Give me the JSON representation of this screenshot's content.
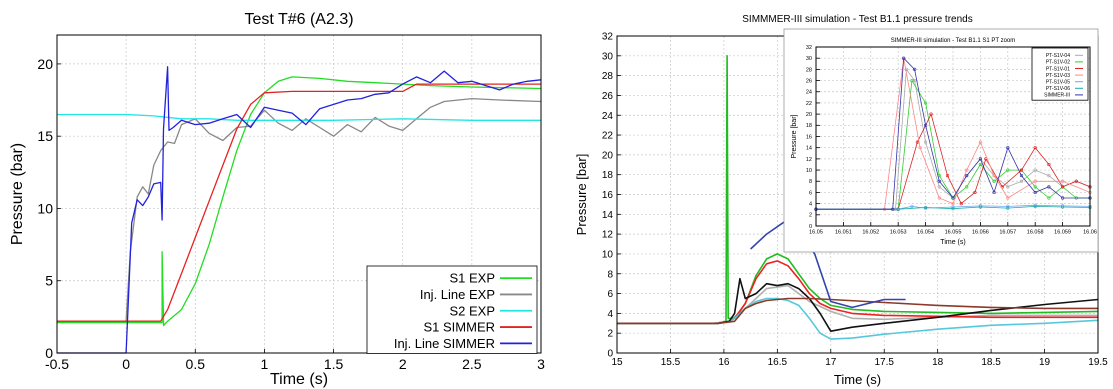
{
  "chart_data": [
    {
      "type": "line",
      "title": "Test T#6 (A2.3)",
      "xlabel": "Time (s)",
      "ylabel": "Pressure (bar)",
      "xlim": [
        -0.5,
        3
      ],
      "ylim": [
        0,
        22
      ],
      "xticks": [
        "-0.5",
        "0",
        "0.5",
        "1",
        "1.5",
        "2",
        "2.5",
        "3"
      ],
      "yticks": [
        "0",
        "5",
        "10",
        "15",
        "20"
      ],
      "grid": true,
      "legend_position": "bottom-right",
      "series": [
        {
          "name": "S1 EXP",
          "color": "#22dd22",
          "x": [
            -0.5,
            0.0,
            0.26,
            0.26,
            0.27,
            0.27,
            0.3,
            0.4,
            0.5,
            0.6,
            0.7,
            0.8,
            0.9,
            1.0,
            1.1,
            1.2,
            1.4,
            1.6,
            1.8,
            2.0,
            2.2,
            2.5,
            3.0
          ],
          "y": [
            2.1,
            2.1,
            2.1,
            7.0,
            2.3,
            1.9,
            2.2,
            3.0,
            4.8,
            7.5,
            10.8,
            14.0,
            16.5,
            18.0,
            18.8,
            19.1,
            19.0,
            18.8,
            18.7,
            18.6,
            18.5,
            18.4,
            18.3
          ]
        },
        {
          "name": "Inj. Line EXP",
          "color": "#888888",
          "x": [
            -0.5,
            0.0,
            0.03,
            0.08,
            0.12,
            0.16,
            0.2,
            0.25,
            0.3,
            0.35,
            0.4,
            0.5,
            0.6,
            0.7,
            0.8,
            0.9,
            1.0,
            1.1,
            1.2,
            1.3,
            1.4,
            1.5,
            1.6,
            1.7,
            1.8,
            1.9,
            2.0,
            2.1,
            2.2,
            2.3,
            2.5,
            2.7,
            3.0
          ],
          "y": [
            2.2,
            2.2,
            7.0,
            10.8,
            11.5,
            11.0,
            13.0,
            14.0,
            14.6,
            14.5,
            15.8,
            16.2,
            15.2,
            14.7,
            15.6,
            15.7,
            16.8,
            15.9,
            15.4,
            16.2,
            15.6,
            15.0,
            15.8,
            15.3,
            16.3,
            15.7,
            15.4,
            16.2,
            17.0,
            17.4,
            17.6,
            17.5,
            17.4
          ]
        },
        {
          "name": "S2 EXP",
          "color": "#22e6e6",
          "x": [
            -0.5,
            0.0,
            0.2,
            0.4,
            0.6,
            0.8,
            1.0,
            1.5,
            2.0,
            2.5,
            3.0
          ],
          "y": [
            16.5,
            16.5,
            16.4,
            16.2,
            16.2,
            16.1,
            16.1,
            16.1,
            16.2,
            16.1,
            16.1
          ]
        },
        {
          "name": "S1 SIMMER",
          "color": "#e52222",
          "x": [
            -0.5,
            0.0,
            0.25,
            0.3,
            0.4,
            0.5,
            0.6,
            0.7,
            0.8,
            0.9,
            1.0,
            1.2,
            1.5,
            1.8,
            2.0,
            2.1,
            2.2,
            2.5,
            3.0
          ],
          "y": [
            2.2,
            2.2,
            2.2,
            3.0,
            5.5,
            8.0,
            10.5,
            13.0,
            15.5,
            17.2,
            18.0,
            18.1,
            18.1,
            18.1,
            18.1,
            18.6,
            18.6,
            18.6,
            18.6
          ]
        },
        {
          "name": "Inj. Line SIMMER",
          "color": "#2222dd",
          "x": [
            -0.5,
            0.0,
            0.04,
            0.08,
            0.12,
            0.16,
            0.2,
            0.25,
            0.26,
            0.27,
            0.3,
            0.31,
            0.34,
            0.4,
            0.5,
            0.6,
            0.7,
            0.8,
            0.9,
            1.0,
            1.1,
            1.2,
            1.3,
            1.4,
            1.5,
            1.6,
            1.7,
            1.8,
            1.9,
            2.0,
            2.1,
            2.2,
            2.3,
            2.4,
            2.5,
            2.7,
            2.8,
            2.9,
            3.0
          ],
          "y": [
            0.0,
            0.0,
            9.0,
            10.6,
            10.2,
            10.8,
            11.7,
            11.8,
            9.2,
            15.5,
            19.8,
            15.4,
            15.6,
            16.1,
            15.8,
            15.9,
            16.2,
            16.5,
            15.6,
            17.0,
            16.8,
            16.6,
            15.8,
            16.9,
            17.2,
            17.5,
            17.6,
            17.9,
            18.0,
            18.6,
            19.1,
            18.7,
            19.5,
            18.7,
            18.8,
            18.2,
            18.6,
            18.8,
            18.9
          ]
        }
      ]
    },
    {
      "type": "line",
      "title": "SIMMMER-III simulation - Test B1.1 pressure trends",
      "xlabel": "Time (s)",
      "ylabel": "Pressure [bar]",
      "xlim": [
        15,
        19.5
      ],
      "ylim": [
        0,
        32
      ],
      "xticks": [
        "15",
        "15.5",
        "16",
        "16.5",
        "17",
        "17.5",
        "18",
        "18.5",
        "19",
        "19.5"
      ],
      "yticks": [
        "0",
        "2",
        "4",
        "6",
        "8",
        "10",
        "12",
        "14",
        "16",
        "18",
        "20",
        "22",
        "24",
        "26",
        "28",
        "30",
        "32"
      ],
      "grid": true,
      "series": [
        {
          "color": "#b0b0b0",
          "x": [
            15,
            15.9,
            16.05,
            16.2,
            16.4,
            16.6,
            16.8,
            17.0,
            17.2,
            17.5,
            18,
            18.5,
            19,
            19.5
          ],
          "y": [
            3.0,
            3.0,
            3.2,
            4.5,
            6.5,
            6.8,
            5.2,
            4.2,
            3.5,
            3.4,
            3.6,
            3.8,
            3.8,
            3.8
          ]
        },
        {
          "color": "#22bb22",
          "x": [
            15,
            15.95,
            16.02,
            16.03,
            16.04,
            16.1,
            16.2,
            16.3,
            16.4,
            16.5,
            16.6,
            16.7,
            16.8,
            16.9,
            17.0,
            17.2,
            17.5,
            18,
            18.5,
            19,
            19.5
          ],
          "y": [
            3.0,
            3.0,
            3.2,
            30.0,
            3.5,
            3.5,
            5.0,
            7.8,
            9.5,
            10.0,
            9.5,
            8.0,
            6.5,
            5.5,
            4.8,
            4.4,
            4.2,
            4.1,
            4.0,
            4.1,
            4.2
          ]
        },
        {
          "color": "#ee2222",
          "x": [
            15,
            15.95,
            16.05,
            16.1,
            16.2,
            16.3,
            16.4,
            16.5,
            16.6,
            16.7,
            16.8,
            16.9,
            17.0,
            17.2,
            17.5,
            18,
            18.5,
            19,
            19.5
          ],
          "y": [
            3.0,
            3.0,
            3.2,
            3.5,
            5.0,
            7.5,
            9.0,
            9.3,
            8.8,
            7.5,
            6.0,
            5.0,
            4.5,
            4.0,
            3.8,
            3.7,
            3.6,
            3.6,
            3.6
          ]
        },
        {
          "color": "#55c8dd",
          "x": [
            15,
            15.95,
            16.05,
            16.1,
            16.2,
            16.3,
            16.4,
            16.5,
            16.6,
            16.7,
            16.8,
            16.9,
            17.0,
            17.2,
            17.5,
            18,
            18.5,
            19,
            19.5
          ],
          "y": [
            3.0,
            3.0,
            3.2,
            3.5,
            4.5,
            5.2,
            5.5,
            5.5,
            5.3,
            4.8,
            3.5,
            2.0,
            1.4,
            1.5,
            1.9,
            2.4,
            2.8,
            3.0,
            3.3
          ]
        },
        {
          "color": "#111111",
          "x": [
            15,
            15.95,
            16.05,
            16.1,
            16.15,
            16.2,
            16.3,
            16.4,
            16.5,
            16.6,
            16.7,
            16.8,
            16.9,
            17.0,
            17.2,
            17.5,
            18,
            18.5,
            19,
            19.5
          ],
          "y": [
            3.0,
            3.0,
            3.2,
            4.0,
            7.5,
            5.5,
            6.0,
            7.0,
            6.8,
            7.0,
            6.5,
            5.5,
            4.0,
            2.2,
            2.6,
            3.0,
            3.6,
            4.3,
            4.9,
            5.4
          ]
        },
        {
          "color": "#8b3a2a",
          "x": [
            15,
            15.95,
            16.1,
            16.2,
            16.3,
            16.4,
            16.6,
            16.8,
            17.0,
            17.5,
            18,
            18.5,
            19,
            19.5
          ],
          "y": [
            3.0,
            3.0,
            3.2,
            4.5,
            5.0,
            5.3,
            5.5,
            5.5,
            5.4,
            5.1,
            4.8,
            4.6,
            4.5,
            4.5
          ]
        },
        {
          "color": "#3344aa",
          "x": [
            16.25,
            16.4,
            16.6,
            16.85,
            17.0,
            17.2,
            17.5,
            17.7
          ],
          "y": [
            10.5,
            12.0,
            13.5,
            10.0,
            5.2,
            4.6,
            5.4,
            5.4
          ]
        }
      ]
    },
    {
      "type": "line",
      "title": "SIMMER-III simulation - Test B1.1 S1 PT zoom",
      "xlabel": "Time (s)",
      "ylabel": "Pressure [bar]",
      "xlim": [
        16.05,
        16.06
      ],
      "ylim": [
        0,
        32
      ],
      "xticks": [
        "16.05",
        "16.051",
        "16.052",
        "16.053",
        "16.054",
        "16.055",
        "16.056",
        "16.057",
        "16.058",
        "16.059",
        "16.06"
      ],
      "yticks": [
        "0",
        "2",
        "4",
        "6",
        "8",
        "10",
        "12",
        "14",
        "16",
        "18",
        "20",
        "22",
        "24",
        "26",
        "28",
        "30",
        "32"
      ],
      "grid": true,
      "legend_position": "top-right",
      "series": [
        {
          "name": "PT-S1V-04",
          "color": "#aaaaaa",
          "x": [
            16.05,
            16.0529,
            16.0533,
            16.0536,
            16.054,
            16.0545,
            16.055,
            16.0555,
            16.056,
            16.0565,
            16.057,
            16.0575,
            16.058,
            16.0585,
            16.059,
            16.0595,
            16.06
          ],
          "y": [
            3,
            3,
            28,
            26,
            15,
            7,
            5,
            9,
            12,
            9,
            7,
            8,
            10,
            9,
            7,
            8,
            7
          ]
        },
        {
          "name": "PT-S1V-02",
          "color": "#33cc33",
          "x": [
            16.05,
            16.053,
            16.0535,
            16.054,
            16.0545,
            16.055,
            16.0555,
            16.056,
            16.0565,
            16.057,
            16.0575,
            16.058,
            16.0585,
            16.059,
            16.0595,
            16.06
          ],
          "y": [
            3,
            3,
            26,
            22,
            9,
            5,
            7,
            11,
            8,
            10,
            10,
            7,
            5,
            7,
            5,
            5
          ]
        },
        {
          "name": "PT-S1V-01",
          "color": "#dd2222",
          "x": [
            16.05,
            16.053,
            16.0537,
            16.0542,
            16.0548,
            16.0553,
            16.0558,
            16.0562,
            16.0568,
            16.0575,
            16.058,
            16.0585,
            16.059,
            16.0595,
            16.06
          ],
          "y": [
            3,
            3,
            15,
            20,
            9,
            4,
            6,
            12,
            7,
            10,
            14,
            11,
            7,
            8,
            7
          ]
        },
        {
          "name": "PT-S1V-03",
          "color": "#ff8888",
          "x": [
            16.05,
            16.0525,
            16.0532,
            16.0538,
            16.0545,
            16.055,
            16.0555,
            16.056,
            16.0565,
            16.057,
            16.058,
            16.059,
            16.06
          ],
          "y": [
            3,
            3,
            30,
            14,
            5,
            4,
            10,
            15,
            9,
            5,
            8,
            8,
            6
          ]
        },
        {
          "name": "PT-S1V-05",
          "color": "#66aaee",
          "x": [
            16.05,
            16.053,
            16.0535,
            16.054,
            16.055,
            16.056,
            16.057,
            16.058,
            16.059,
            16.06
          ],
          "y": [
            3,
            3,
            3.5,
            3.2,
            3.4,
            3.6,
            3.5,
            3.7,
            3.6,
            3.5
          ]
        },
        {
          "name": "PT-S1V-06",
          "color": "#22aaaa",
          "x": [
            16.05,
            16.053,
            16.054,
            16.055,
            16.056,
            16.057,
            16.058,
            16.059,
            16.06
          ],
          "y": [
            3,
            3,
            3.3,
            3.1,
            3.4,
            3.2,
            3.5,
            3.4,
            3.3
          ]
        },
        {
          "name": "SIMMER-III",
          "color": "#3333aa",
          "x": [
            16.05,
            16.0528,
            16.0532,
            16.0536,
            16.054,
            16.0545,
            16.055,
            16.0555,
            16.056,
            16.0565,
            16.057,
            16.0575,
            16.058,
            16.0585,
            16.059,
            16.06
          ],
          "y": [
            3,
            3,
            30,
            28,
            18,
            8,
            5,
            9,
            12,
            6,
            14,
            9,
            6,
            7,
            5,
            5
          ]
        }
      ]
    }
  ]
}
